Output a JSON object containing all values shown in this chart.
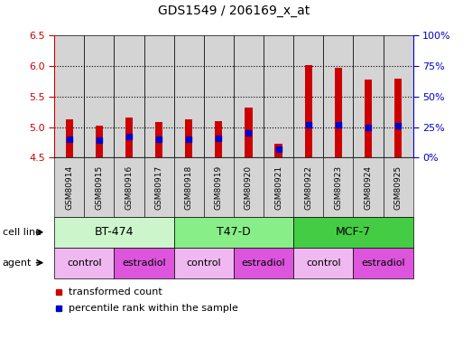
{
  "title": "GDS1549 / 206169_x_at",
  "samples": [
    "GSM80914",
    "GSM80915",
    "GSM80916",
    "GSM80917",
    "GSM80918",
    "GSM80919",
    "GSM80920",
    "GSM80921",
    "GSM80922",
    "GSM80923",
    "GSM80924",
    "GSM80925"
  ],
  "transformed_counts": [
    5.13,
    5.02,
    5.15,
    5.08,
    5.13,
    5.1,
    5.32,
    4.73,
    6.02,
    5.97,
    5.78,
    5.8
  ],
  "percentile_ranks": [
    15,
    14,
    17,
    15,
    15,
    16,
    20,
    7,
    27,
    27,
    25,
    26
  ],
  "bar_bottom": 4.5,
  "ylim_left": [
    4.5,
    6.5
  ],
  "ylim_right": [
    0,
    100
  ],
  "yticks_left": [
    4.5,
    5.0,
    5.5,
    6.0,
    6.5
  ],
  "yticks_right": [
    0,
    25,
    50,
    75,
    100
  ],
  "cell_lines": [
    {
      "label": "BT-474",
      "start": 0,
      "end": 3,
      "color": "#ccf5cc"
    },
    {
      "label": "T47-D",
      "start": 4,
      "end": 7,
      "color": "#88ee88"
    },
    {
      "label": "MCF-7",
      "start": 8,
      "end": 11,
      "color": "#44cc44"
    }
  ],
  "agents": [
    {
      "label": "control",
      "start": 0,
      "end": 1,
      "color": "#f0b8f0"
    },
    {
      "label": "estradiol",
      "start": 2,
      "end": 3,
      "color": "#dd55dd"
    },
    {
      "label": "control",
      "start": 4,
      "end": 5,
      "color": "#f0b8f0"
    },
    {
      "label": "estradiol",
      "start": 6,
      "end": 7,
      "color": "#dd55dd"
    },
    {
      "label": "control",
      "start": 8,
      "end": 9,
      "color": "#f0b8f0"
    },
    {
      "label": "estradiol",
      "start": 10,
      "end": 11,
      "color": "#dd55dd"
    }
  ],
  "bar_color": "#cc0000",
  "dot_color": "#0000cc",
  "bg_color": "#ffffff",
  "col_bg_color": "#d4d4d4",
  "left_tick_color": "#cc0000",
  "right_tick_color": "#0000cc",
  "title_fontsize": 10,
  "tick_fontsize": 8,
  "label_fontsize": 8,
  "bar_width": 0.25
}
